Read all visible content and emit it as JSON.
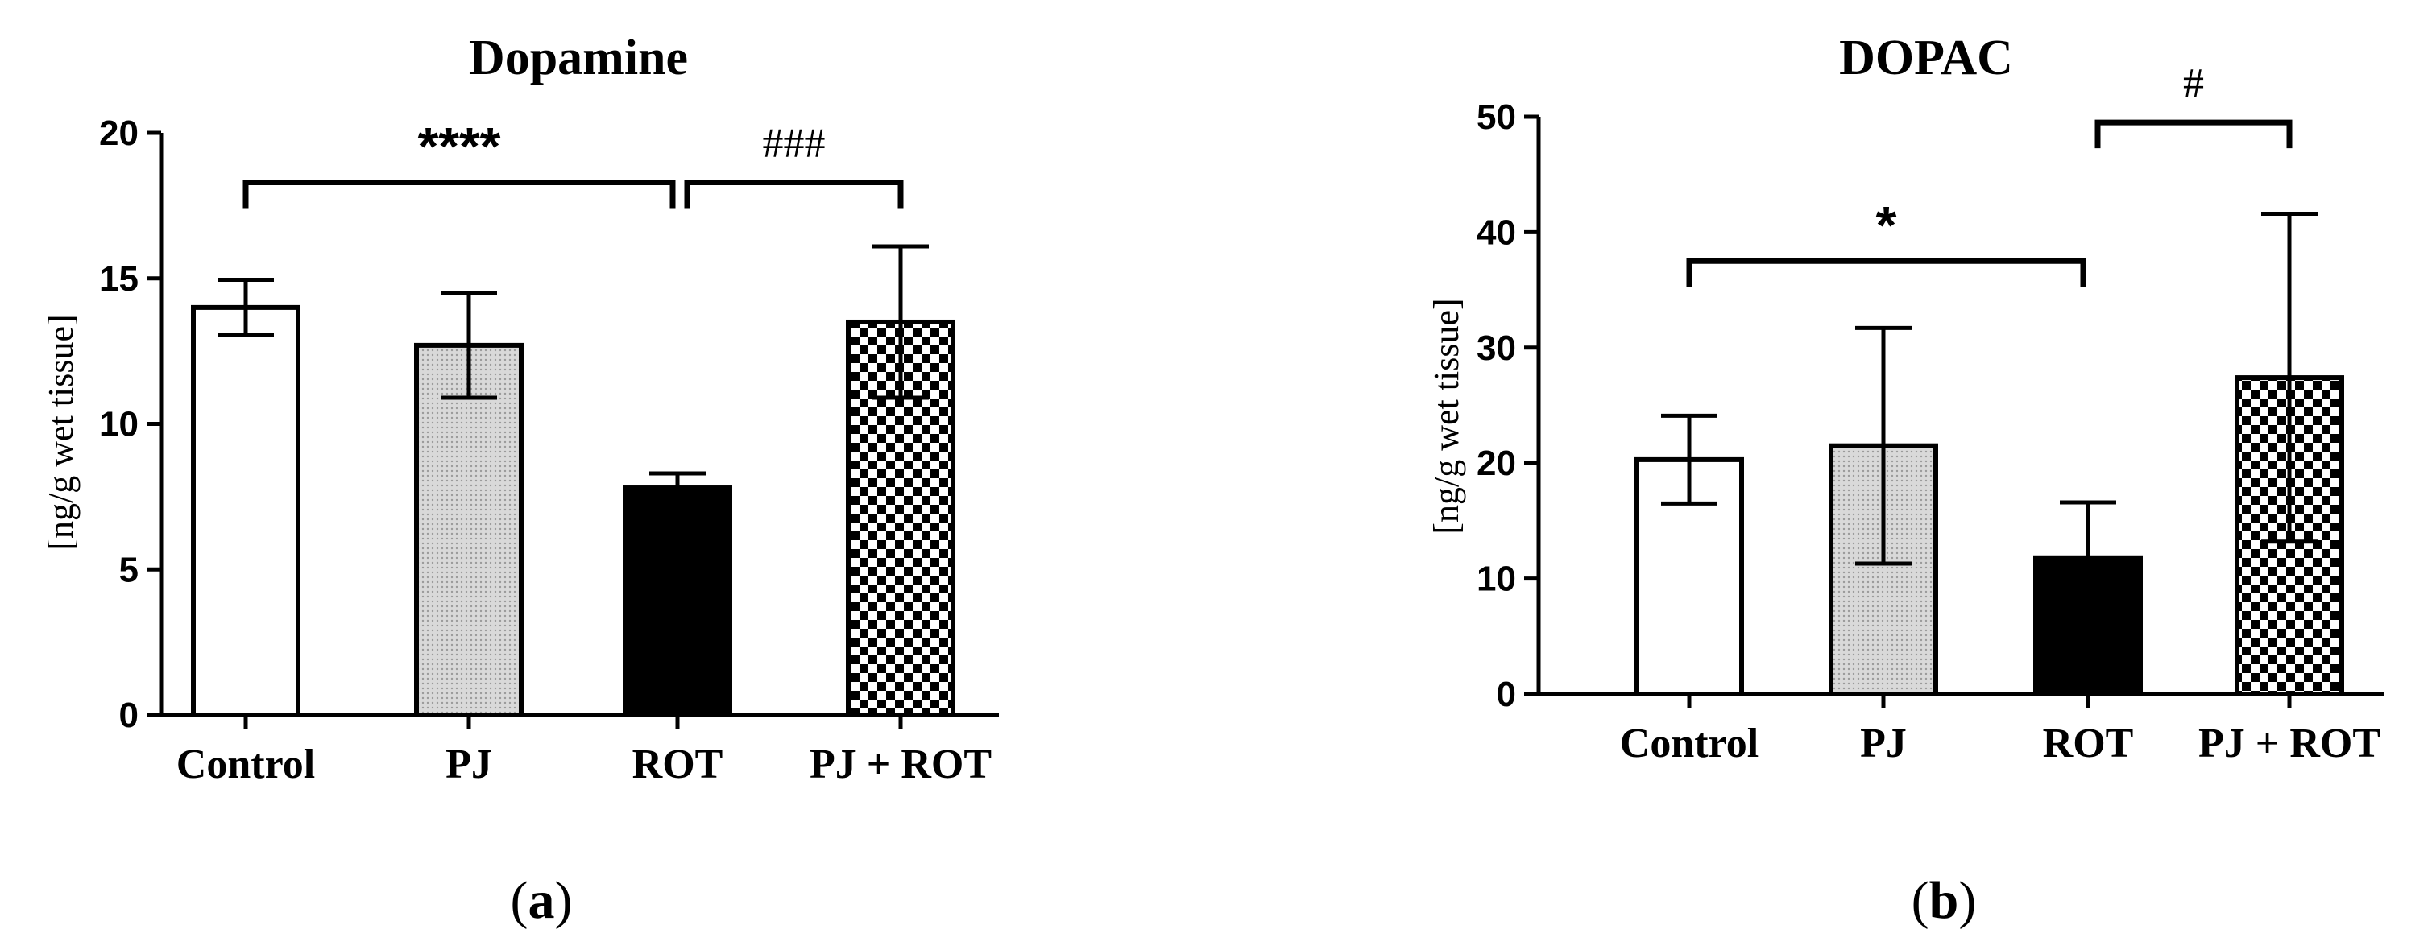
{
  "chart_data": [
    {
      "panel": "a",
      "type": "bar",
      "title": "Dopamine",
      "ylabel": "[ng/g wet tissue]",
      "categories": [
        "Control",
        "PJ",
        "ROT",
        "PJ + ROT"
      ],
      "values": [
        14.0,
        12.7,
        7.8,
        13.5
      ],
      "error": [
        0.95,
        1.8,
        0.5,
        2.6
      ],
      "fills": [
        "white",
        "dotted",
        "black",
        "checker"
      ],
      "ylim": [
        0,
        20
      ],
      "yticks": [
        "0",
        "5",
        "10",
        "15",
        "20"
      ],
      "significance": [
        {
          "from": 0,
          "to": 2,
          "label": "****",
          "level": 18.3
        },
        {
          "from": 2,
          "to": 3,
          "label": "###",
          "level": 18.3
        }
      ]
    },
    {
      "panel": "b",
      "type": "bar",
      "title": "DOPAC",
      "ylabel": "[ng/g wet tissue]",
      "categories": [
        "Control",
        "PJ",
        "ROT",
        "PJ + ROT"
      ],
      "values": [
        20.3,
        21.5,
        11.8,
        27.4
      ],
      "error": [
        3.8,
        10.2,
        4.8,
        14.2
      ],
      "fills": [
        "white",
        "dotted",
        "black",
        "checker"
      ],
      "ylim": [
        0,
        50
      ],
      "yticks": [
        "0",
        "10",
        "20",
        "30",
        "40",
        "50"
      ],
      "significance": [
        {
          "from": 0,
          "to": 2,
          "label": "*",
          "level": 37.5
        },
        {
          "from": 2,
          "to": 3,
          "label": "#",
          "level": 49.5
        }
      ]
    }
  ],
  "panel_labels": [
    {
      "open": "(",
      "letter": "a",
      "close": ")"
    },
    {
      "open": "(",
      "letter": "b",
      "close": ")"
    }
  ],
  "colors": {
    "ink": "#000000",
    "dotted_fill": "#c8c8c8",
    "background": "#ffffff"
  }
}
